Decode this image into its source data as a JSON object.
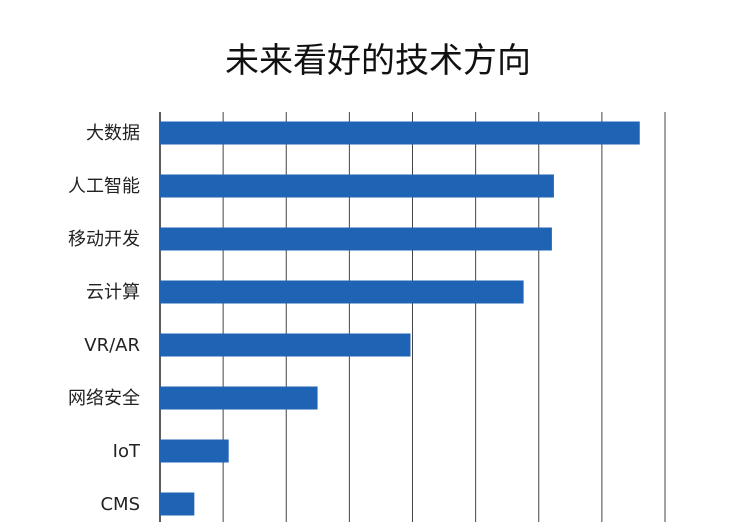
{
  "chart_data": {
    "type": "bar",
    "orientation": "horizontal",
    "title": "未来看好的技术方向",
    "categories": [
      "大数据",
      "人工智能",
      "移动开发",
      "云计算",
      "VR/AR",
      "网络安全",
      "IoT",
      "CMS"
    ],
    "values": [
      95,
      78,
      77.6,
      72,
      49.6,
      31.2,
      13.6,
      6.8
    ],
    "xlim": [
      0,
      100
    ],
    "grid": true,
    "bar_color": "#1f63b5"
  }
}
